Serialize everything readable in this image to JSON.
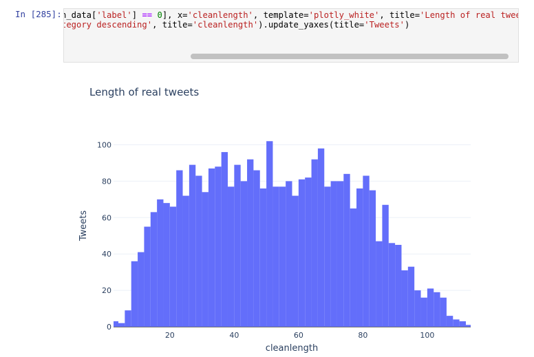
{
  "cell": {
    "prompt": "In [285]:",
    "code_line1_pre": "n_data[",
    "code_line1_s1": "'label'",
    "code_line1_mid": "] ",
    "code_line1_op": "==",
    "code_line1_num": " 0",
    "code_line1_rest": "], x=",
    "code_line1_s2": "'cleanlength'",
    "code_line1_rest2": ", template=",
    "code_line1_s3": "'plotly_white'",
    "code_line1_rest3": ", title=",
    "code_line1_s4": "'Length of real tweets",
    "code_line2_s1": "tegory descending'",
    "code_line2_rest": ", title=",
    "code_line2_s2": "'cleanlength'",
    "code_line2_rest2": ").update_yaxes(title=",
    "code_line2_s3": "'Tweets'",
    "code_line2_end": ")"
  },
  "colors": {
    "bar": "#636efa",
    "grid": "#ebf0f8",
    "text": "#2a3f5f"
  },
  "chart_data": {
    "type": "bar",
    "title": "Length of real tweets",
    "xlabel": "cleanlength",
    "ylabel": "Tweets",
    "xlim": [
      2.5,
      113.5
    ],
    "ylim": [
      0,
      107
    ],
    "x_ticks": [
      20,
      40,
      60,
      80,
      100
    ],
    "y_ticks": [
      0,
      20,
      40,
      60,
      80,
      100
    ],
    "grid": true,
    "bin_width": 2,
    "bin_starts": [
      2,
      4,
      6,
      8,
      10,
      12,
      14,
      16,
      18,
      20,
      22,
      24,
      26,
      28,
      30,
      32,
      34,
      36,
      38,
      40,
      42,
      44,
      46,
      48,
      50,
      52,
      54,
      56,
      58,
      60,
      62,
      64,
      66,
      68,
      70,
      72,
      74,
      76,
      78,
      80,
      82,
      84,
      86,
      88,
      90,
      92,
      94,
      96,
      98,
      100,
      102,
      104,
      106,
      108,
      110,
      112
    ],
    "values": [
      3,
      2,
      9,
      36,
      41,
      55,
      63,
      70,
      68,
      66,
      86,
      72,
      89,
      83,
      74,
      87,
      88,
      96,
      77,
      89,
      80,
      92,
      86,
      76,
      102,
      77,
      77,
      80,
      72,
      81,
      82,
      92,
      98,
      77,
      80,
      80,
      84,
      65,
      76,
      83,
      75,
      47,
      67,
      46,
      45,
      31,
      33,
      20,
      16,
      21,
      19,
      16,
      6,
      4,
      3,
      1
    ]
  }
}
